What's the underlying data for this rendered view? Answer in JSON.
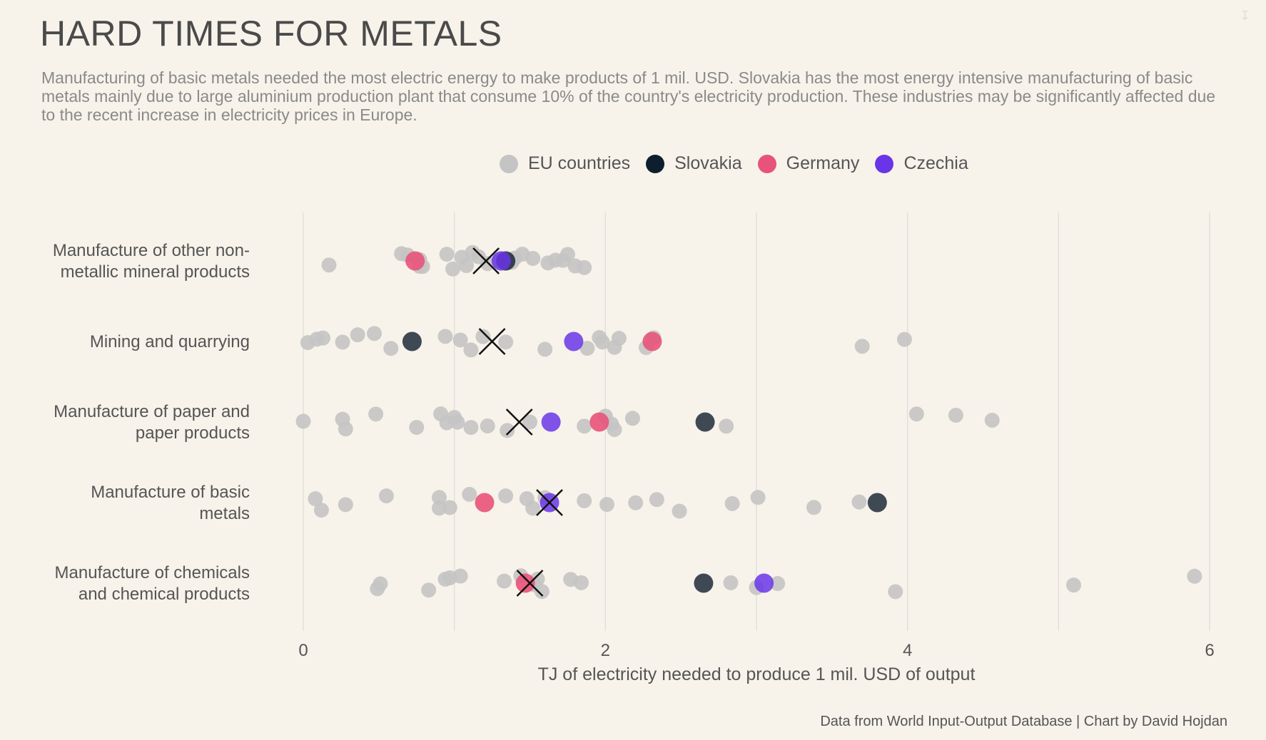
{
  "title": "HARD TIMES FOR METALS",
  "subtitle": "Manufacturing of basic metals needed the most electric energy to make products of 1 mil. USD. Slovakia has the most energy intensive manufacturing of basic metals mainly due to large aluminium production plant that consume 10% of the country's electricity production. These industries may be significantly affected due to the recent increase in electricity prices in Europe.",
  "credit": "Data from World Input-Output Database | Chart by David Hojdan",
  "legend": [
    {
      "label": "EU countries",
      "color": "#c4c4c4"
    },
    {
      "label": "Slovakia",
      "color": "#0f1e2e"
    },
    {
      "label": "Germany",
      "color": "#e8537a"
    },
    {
      "label": "Czechia",
      "color": "#6a35e8"
    }
  ],
  "chart_data": {
    "type": "scatter",
    "xlabel": "TJ of electricity needed to produce 1 mil. USD of output",
    "xlim": [
      0,
      6
    ],
    "xticks": [
      0,
      2,
      4,
      6
    ],
    "grid": "vertical",
    "legend_position": "top",
    "categories": [
      {
        "label": "Manufacture of other non-\nmetallic mineral products",
        "eu": [
          0.17,
          0.65,
          0.77,
          0.79,
          0.69,
          0.77,
          0.95,
          0.99,
          1.05,
          1.08,
          1.12,
          1.16,
          1.22,
          1.3,
          1.45,
          1.52,
          1.62,
          1.67,
          1.72,
          1.75,
          1.8,
          1.86,
          1.4,
          1.33,
          1.38
        ],
        "average": 1.21,
        "slovakia": 1.34,
        "germany": 0.74,
        "czechia": 1.31
      },
      {
        "label": "Mining and quarrying",
        "eu": [
          0.03,
          0.09,
          0.13,
          0.26,
          0.36,
          0.47,
          0.58,
          0.94,
          1.04,
          1.11,
          1.19,
          1.34,
          1.6,
          1.88,
          1.96,
          1.98,
          2.06,
          2.09,
          2.27,
          2.32,
          3.7,
          3.98
        ],
        "average": 1.25,
        "slovakia": 0.72,
        "germany": 2.31,
        "czechia": 1.79
      },
      {
        "label": "Manufacture of paper and\npaper products",
        "eu": [
          0.0,
          0.26,
          0.28,
          0.48,
          0.75,
          0.91,
          0.95,
          1.0,
          1.02,
          1.11,
          1.22,
          1.35,
          1.5,
          1.86,
          2.0,
          2.04,
          2.06,
          2.18,
          2.8,
          4.06,
          4.32,
          4.56
        ],
        "average": 1.43,
        "slovakia": 2.66,
        "germany": 1.96,
        "czechia": 1.64
      },
      {
        "label": "Manufacture of basic\nmetals",
        "eu": [
          0.08,
          0.12,
          0.28,
          0.55,
          0.9,
          0.9,
          0.97,
          1.1,
          1.34,
          1.48,
          1.52,
          1.6,
          1.86,
          2.01,
          2.2,
          2.34,
          2.49,
          2.84,
          3.01,
          3.38,
          3.68
        ],
        "average": 1.63,
        "slovakia": 3.8,
        "germany": 1.2,
        "czechia": 1.63
      },
      {
        "label": "Manufacture of chemicals\nand chemical products",
        "eu": [
          0.49,
          0.51,
          0.83,
          0.94,
          0.97,
          1.04,
          1.33,
          1.44,
          1.53,
          1.55,
          1.58,
          1.77,
          1.84,
          2.83,
          3.0,
          3.14,
          3.92,
          5.1,
          5.9
        ],
        "average": 1.5,
        "slovakia": 2.65,
        "germany": 1.47,
        "czechia": 3.05
      }
    ]
  }
}
